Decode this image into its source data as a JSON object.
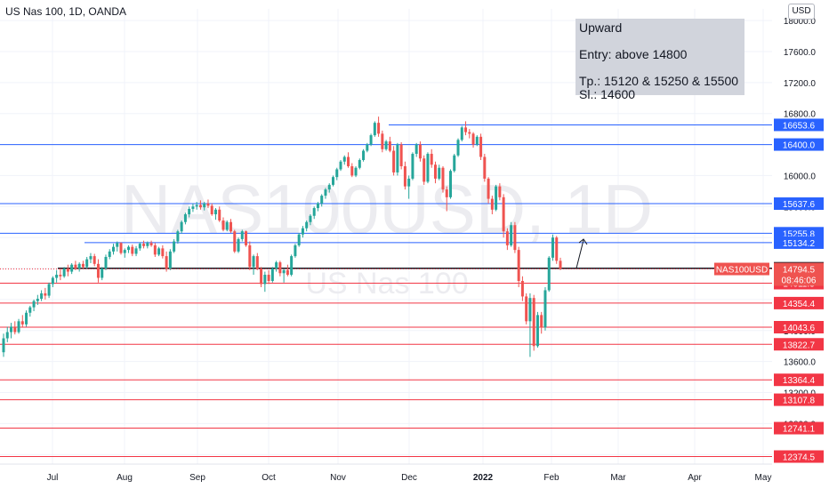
{
  "header": {
    "symbol": "US Nas 100, 1D, OANDA",
    "currency": "USD"
  },
  "watermark": {
    "big": "NAS100USD, 1D",
    "small": "US Nas 100"
  },
  "note": {
    "l1": "Upward",
    "l2": "Entry: above 14800",
    "l3": "Tp.: 15120 & 15250 & 15500",
    "l4": "Sl.: 14600"
  },
  "colors": {
    "up": "#26a69a",
    "down": "#ef5350",
    "support": "#f23645",
    "resistance": "#2962ff",
    "entry": "#131722"
  },
  "chart_data": {
    "type": "candlestick",
    "title": "US Nas 100, 1D, OANDA",
    "currency": "USD",
    "x_tick_labels": [
      "Jul",
      "Aug",
      "Sep",
      "Oct",
      "Nov",
      "Dec",
      "2022",
      "Feb",
      "Mar",
      "Apr",
      "May"
    ],
    "y_tick_labels": [
      "18000.0",
      "17600.0",
      "17200.0",
      "16800.0",
      "16400.0",
      "16000.0",
      "15600.0",
      "15200.0",
      "14800.0",
      "14400.0",
      "14000.0",
      "13600.0",
      "13200.0",
      "12800.0",
      "12400.0"
    ],
    "ylim": [
      12300,
      18150
    ],
    "ohlc_approx": [
      [
        13720,
        13960,
        13660,
        13900
      ],
      [
        13900,
        14050,
        13850,
        13980
      ],
      [
        13980,
        14100,
        13900,
        14050
      ],
      [
        14050,
        14120,
        13950,
        13980
      ],
      [
        13980,
        14150,
        13960,
        14120
      ],
      [
        14120,
        14200,
        14050,
        14080
      ],
      [
        14080,
        14260,
        14050,
        14230
      ],
      [
        14230,
        14320,
        14180,
        14300
      ],
      [
        14300,
        14400,
        14250,
        14380
      ],
      [
        14380,
        14460,
        14330,
        14410
      ],
      [
        14410,
        14520,
        14380,
        14480
      ],
      [
        14480,
        14550,
        14400,
        14450
      ],
      [
        14450,
        14620,
        14420,
        14600
      ],
      [
        14600,
        14700,
        14560,
        14680
      ],
      [
        14680,
        14780,
        14620,
        14720
      ],
      [
        14720,
        14800,
        14650,
        14700
      ],
      [
        14700,
        14820,
        14680,
        14800
      ],
      [
        14800,
        14850,
        14700,
        14760
      ],
      [
        14760,
        14870,
        14730,
        14850
      ],
      [
        14850,
        14900,
        14780,
        14800
      ],
      [
        14800,
        14880,
        14760,
        14860
      ],
      [
        14860,
        14900,
        14790,
        14820
      ],
      [
        14820,
        14950,
        14800,
        14920
      ],
      [
        14920,
        15000,
        14870,
        14960
      ],
      [
        14960,
        14990,
        14830,
        14860
      ],
      [
        14860,
        14920,
        14620,
        14680
      ],
      [
        14680,
        14820,
        14650,
        14800
      ],
      [
        14800,
        14980,
        14780,
        14950
      ],
      [
        14950,
        15050,
        14920,
        15020
      ],
      [
        15020,
        15120,
        14980,
        15080
      ],
      [
        15080,
        15150,
        15020,
        15130
      ],
      [
        15130,
        15140,
        14980,
        15000
      ],
      [
        15000,
        15060,
        14940,
        15040
      ],
      [
        15040,
        15100,
        15000,
        15080
      ],
      [
        15080,
        15110,
        14960,
        14990
      ],
      [
        14990,
        15090,
        14960,
        15060
      ],
      [
        15060,
        15140,
        15030,
        15120
      ],
      [
        15120,
        15160,
        15060,
        15090
      ],
      [
        15090,
        15150,
        15060,
        15130
      ],
      [
        15130,
        15160,
        15080,
        15100
      ],
      [
        15100,
        15130,
        14950,
        14980
      ],
      [
        14980,
        15080,
        14960,
        15060
      ],
      [
        15060,
        15100,
        14930,
        14960
      ],
      [
        14960,
        15020,
        14760,
        14800
      ],
      [
        14800,
        15050,
        14780,
        15020
      ],
      [
        15020,
        15180,
        15000,
        15150
      ],
      [
        15150,
        15300,
        15120,
        15280
      ],
      [
        15280,
        15420,
        15250,
        15400
      ],
      [
        15400,
        15520,
        15370,
        15500
      ],
      [
        15500,
        15600,
        15460,
        15570
      ],
      [
        15570,
        15640,
        15530,
        15600
      ],
      [
        15600,
        15660,
        15560,
        15620
      ],
      [
        15620,
        15680,
        15560,
        15590
      ],
      [
        15590,
        15660,
        15550,
        15640
      ],
      [
        15640,
        15690,
        15580,
        15610
      ],
      [
        15610,
        15640,
        15480,
        15500
      ],
      [
        15500,
        15580,
        15430,
        15560
      ],
      [
        15560,
        15600,
        15400,
        15420
      ],
      [
        15420,
        15460,
        15280,
        15300
      ],
      [
        15300,
        15420,
        15280,
        15400
      ],
      [
        15400,
        15440,
        15260,
        15280
      ],
      [
        15280,
        15300,
        15000,
        15020
      ],
      [
        15020,
        15200,
        15000,
        15180
      ],
      [
        15180,
        15300,
        15150,
        15280
      ],
      [
        15280,
        15290,
        15080,
        15100
      ],
      [
        15100,
        15150,
        14780,
        14820
      ],
      [
        14820,
        14980,
        14720,
        14960
      ],
      [
        14960,
        15000,
        14780,
        14800
      ],
      [
        14800,
        14820,
        14560,
        14600
      ],
      [
        14600,
        14760,
        14500,
        14720
      ],
      [
        14720,
        14780,
        14600,
        14640
      ],
      [
        14640,
        14820,
        14620,
        14800
      ],
      [
        14800,
        14900,
        14760,
        14880
      ],
      [
        14880,
        14900,
        14700,
        14740
      ],
      [
        14740,
        14800,
        14620,
        14780
      ],
      [
        14780,
        14850,
        14700,
        14720
      ],
      [
        14720,
        14980,
        14700,
        14960
      ],
      [
        14960,
        15120,
        14940,
        15100
      ],
      [
        15100,
        15260,
        15080,
        15240
      ],
      [
        15240,
        15350,
        15200,
        15320
      ],
      [
        15320,
        15420,
        15280,
        15400
      ],
      [
        15400,
        15500,
        15360,
        15480
      ],
      [
        15480,
        15600,
        15440,
        15580
      ],
      [
        15580,
        15660,
        15540,
        15640
      ],
      [
        15640,
        15760,
        15600,
        15740
      ],
      [
        15740,
        15840,
        15700,
        15820
      ],
      [
        15820,
        15900,
        15780,
        15880
      ],
      [
        15880,
        16000,
        15860,
        15980
      ],
      [
        15980,
        16100,
        15940,
        16080
      ],
      [
        16080,
        16200,
        16060,
        16180
      ],
      [
        16180,
        16260,
        16140,
        16240
      ],
      [
        16240,
        16300,
        16100,
        16120
      ],
      [
        16120,
        16160,
        15980,
        16000
      ],
      [
        16000,
        16120,
        15980,
        16100
      ],
      [
        16100,
        16220,
        16080,
        16200
      ],
      [
        16200,
        16340,
        16180,
        16320
      ],
      [
        16320,
        16420,
        16300,
        16400
      ],
      [
        16400,
        16540,
        16380,
        16520
      ],
      [
        16520,
        16700,
        16500,
        16680
      ],
      [
        16680,
        16760,
        16500,
        16540
      ],
      [
        16540,
        16580,
        16300,
        16340
      ],
      [
        16340,
        16460,
        16320,
        16440
      ],
      [
        16440,
        16500,
        16300,
        16320
      ],
      [
        16320,
        16380,
        16000,
        16040
      ],
      [
        16040,
        16420,
        16000,
        16400
      ],
      [
        16400,
        16430,
        16080,
        16120
      ],
      [
        16120,
        16180,
        15820,
        15860
      ],
      [
        15860,
        16000,
        15700,
        15960
      ],
      [
        15960,
        16300,
        15940,
        16280
      ],
      [
        16280,
        16420,
        16240,
        16400
      ],
      [
        16400,
        16440,
        16180,
        16220
      ],
      [
        16220,
        16260,
        15880,
        15920
      ],
      [
        15920,
        16300,
        15900,
        16280
      ],
      [
        16280,
        16340,
        16100,
        16140
      ],
      [
        16140,
        16180,
        15900,
        15960
      ],
      [
        15960,
        16140,
        15940,
        16100
      ],
      [
        16100,
        16120,
        15780,
        15820
      ],
      [
        15820,
        15860,
        15540,
        15720
      ],
      [
        15720,
        16080,
        15700,
        16060
      ],
      [
        16060,
        16280,
        16040,
        16260
      ],
      [
        16260,
        16480,
        16240,
        16460
      ],
      [
        16460,
        16640,
        16440,
        16620
      ],
      [
        16620,
        16700,
        16520,
        16560
      ],
      [
        16560,
        16600,
        16480,
        16540
      ],
      [
        16540,
        16560,
        16360,
        16400
      ],
      [
        16400,
        16520,
        16380,
        16500
      ],
      [
        16500,
        16540,
        16200,
        16240
      ],
      [
        16240,
        16280,
        15920,
        15960
      ],
      [
        15960,
        15980,
        15640,
        15700
      ],
      [
        15700,
        15740,
        15500,
        15560
      ],
      [
        15560,
        15880,
        15540,
        15860
      ],
      [
        15860,
        15900,
        15680,
        15720
      ],
      [
        15720,
        15760,
        15200,
        15280
      ],
      [
        15280,
        15320,
        15040,
        15100
      ],
      [
        15100,
        15400,
        15080,
        15360
      ],
      [
        15360,
        15400,
        15000,
        15040
      ],
      [
        15040,
        15080,
        14560,
        14640
      ],
      [
        14640,
        14700,
        14380,
        14440
      ],
      [
        14440,
        14480,
        14080,
        14120
      ],
      [
        14120,
        14480,
        13660,
        14420
      ],
      [
        14420,
        14460,
        13740,
        13800
      ],
      [
        13800,
        14240,
        13780,
        14200
      ],
      [
        14200,
        14240,
        13960,
        14040
      ],
      [
        14040,
        14560,
        14000,
        14520
      ],
      [
        14520,
        14960,
        14500,
        14940
      ],
      [
        14940,
        15240,
        14900,
        15200
      ],
      [
        15200,
        15220,
        14860,
        14900
      ],
      [
        14900,
        14940,
        14780,
        14800
      ]
    ],
    "horizontal_levels": {
      "resistance": [
        16653.6,
        16400.0,
        15637.6,
        15255.8,
        15134.2
      ],
      "entry": 14804.1,
      "support": [
        14611.3,
        14354.4,
        14043.6,
        13822.7,
        13364.4,
        13107.8,
        12741.1,
        12374.5
      ]
    },
    "last_price": {
      "symbol": "NAS100USD",
      "value": "14794.5",
      "countdown": "08:46:06"
    },
    "annotations": [
      "upward arrow projection above 14800"
    ]
  }
}
